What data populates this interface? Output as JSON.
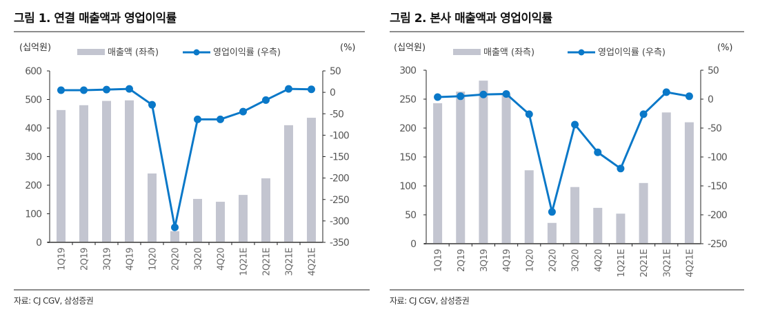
{
  "chart_data": [
    {
      "type": "bar+line",
      "title": "그림 1. 연결 매출액과 영업이익률",
      "left_unit": "(십억원)",
      "right_unit": "(%)",
      "source": "자료: CJ CGV, 삼성증권",
      "categories": [
        "1Q19",
        "2Q19",
        "3Q19",
        "4Q19",
        "1Q20",
        "2Q20",
        "3Q20",
        "4Q20",
        "1Q21E",
        "2Q21E",
        "3Q21E",
        "4Q21E"
      ],
      "series": [
        {
          "name": "매출액 (좌측)",
          "type": "bar",
          "axis": "left",
          "color": "#c3c5d0",
          "values": [
            463,
            480,
            495,
            497,
            241,
            39,
            152,
            142,
            166,
            224,
            410,
            436
          ]
        },
        {
          "name": "영업이익률 (우측)",
          "type": "line",
          "axis": "right",
          "color": "#0a78c8",
          "values": [
            5,
            5,
            6.5,
            8,
            -29,
            -315,
            -63,
            -63,
            -45,
            -18,
            8,
            7
          ]
        }
      ],
      "left_axis": {
        "range": [
          0,
          600
        ],
        "ticks": [
          "0",
          "100",
          "200",
          "300",
          "400",
          "500",
          "600"
        ]
      },
      "right_axis": {
        "range": [
          -350,
          50
        ],
        "ticks": [
          "-350",
          "-300",
          "-250",
          "-200",
          "-150",
          "-100",
          "-50",
          "0",
          "50"
        ]
      },
      "grid": false,
      "legend": "top"
    },
    {
      "type": "bar+line",
      "title": "그림 2. 본사 매출액과 영업이익률",
      "left_unit": "(십억원)",
      "right_unit": "(%)",
      "source": "자료: CJ CGV, 삼성증권",
      "categories": [
        "1Q19",
        "2Q19",
        "3Q19",
        "4Q19",
        "1Q20",
        "2Q20",
        "3Q20",
        "4Q20",
        "1Q21E",
        "2Q21E",
        "3Q21E",
        "4Q21E"
      ],
      "series": [
        {
          "name": "매출액 (좌측)",
          "type": "bar",
          "axis": "left",
          "color": "#c3c5d0",
          "values": [
            243,
            263,
            282,
            258,
            127,
            36,
            98,
            62,
            52,
            105,
            227,
            210
          ]
        },
        {
          "name": "영업이익률 (우측)",
          "type": "line",
          "axis": "right",
          "color": "#0a78c8",
          "values": [
            3.6,
            5,
            8,
            9,
            -26,
            -195,
            -44,
            -92,
            -120,
            -26,
            12,
            5
          ]
        }
      ],
      "left_axis": {
        "range": [
          0,
          300
        ],
        "ticks": [
          "0",
          "50",
          "100",
          "150",
          "200",
          "250",
          "300"
        ]
      },
      "right_axis": {
        "range": [
          -250,
          50
        ],
        "ticks": [
          "-250",
          "-200",
          "-150",
          "-100",
          "-50",
          "0",
          "50"
        ]
      },
      "grid": false,
      "legend": "top"
    }
  ]
}
